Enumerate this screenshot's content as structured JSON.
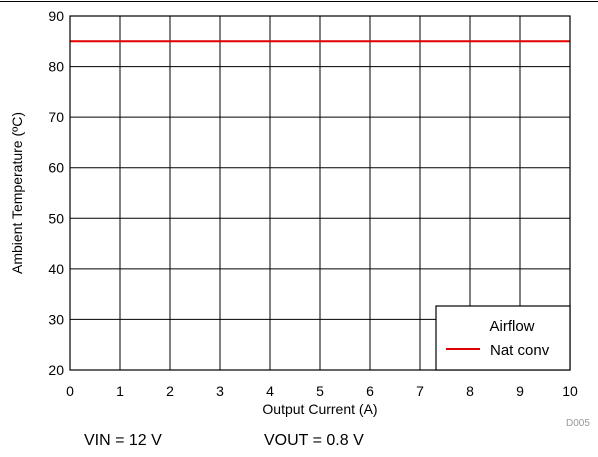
{
  "chart_data": {
    "type": "line",
    "title": "",
    "xlabel": "Output Current (A)",
    "ylabel": "Ambient Temperature (ºC)",
    "xlim": [
      0,
      10
    ],
    "ylim": [
      20,
      90
    ],
    "x_ticks": [
      "0",
      "1",
      "2",
      "3",
      "4",
      "5",
      "6",
      "7",
      "8",
      "9",
      "10"
    ],
    "y_ticks": [
      "20",
      "30",
      "40",
      "50",
      "60",
      "70",
      "80",
      "90"
    ],
    "grid": true,
    "legend": {
      "title": "Airflow",
      "placement": "bottom-right"
    },
    "series": [
      {
        "name": "Nat conv",
        "color": "#e00000",
        "x": [
          0,
          10
        ],
        "y": [
          85,
          85
        ]
      }
    ],
    "figure_id": "D005"
  },
  "conditions": {
    "vin": "VIN = 12 V",
    "vout": "VOUT = 0.8 V"
  }
}
